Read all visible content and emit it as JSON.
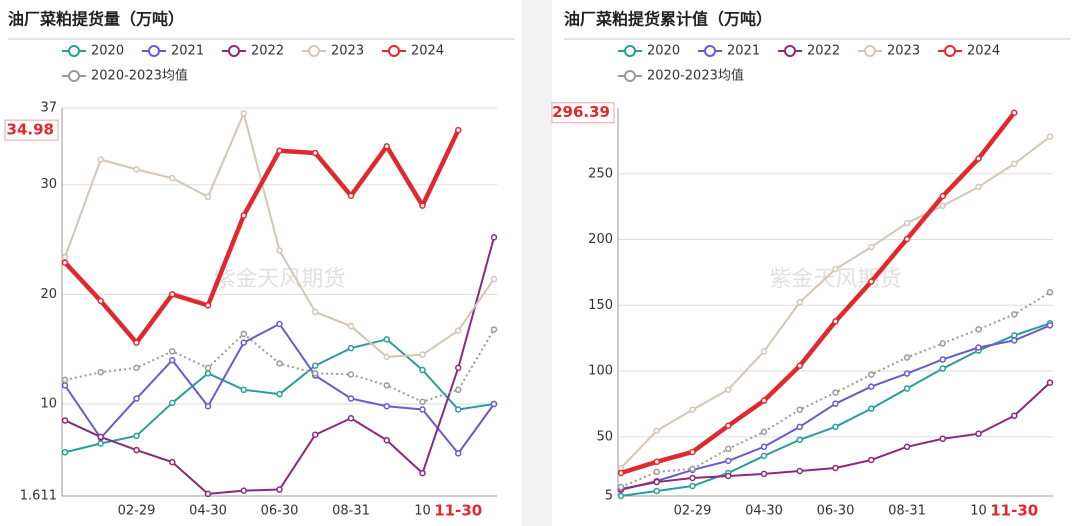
{
  "chart_data": [
    {
      "type": "line",
      "title": "油厂菜粕提货量（万吨）",
      "watermark": "紫金天风期货",
      "categories": [
        null,
        null,
        "02-29",
        null,
        "04-30",
        null,
        "06-30",
        null,
        "08-31",
        null,
        "10",
        "11-30",
        null
      ],
      "highlight_category": "11-30",
      "current_value": 34.98,
      "ylim": [
        1.611,
        37
      ],
      "yticks": [
        1.611,
        10,
        20,
        30,
        37
      ],
      "grid": true,
      "series": [
        {
          "name": "2020",
          "color": "#2a9d9a",
          "values": [
            5.6,
            6.4,
            7.1,
            10.1,
            12.8,
            11.3,
            10.9,
            13.5,
            15.1,
            15.9,
            13.1,
            9.5,
            10.0
          ]
        },
        {
          "name": "2021",
          "color": "#6a5acd",
          "values": [
            11.7,
            6.9,
            10.5,
            14.0,
            9.8,
            15.6,
            17.3,
            12.6,
            10.5,
            9.8,
            9.5,
            5.5,
            10.0
          ]
        },
        {
          "name": "2022",
          "color": "#8b2a7a",
          "values": [
            8.5,
            7.0,
            5.8,
            4.7,
            1.8,
            2.1,
            2.2,
            7.2,
            8.7,
            6.7,
            3.7,
            13.3,
            25.2
          ]
        },
        {
          "name": "2023",
          "color": "#d4c6b4",
          "values": [
            23.4,
            32.3,
            31.4,
            30.6,
            28.9,
            36.5,
            24.0,
            18.4,
            17.1,
            14.3,
            14.5,
            16.7,
            21.4
          ]
        },
        {
          "name": "2024",
          "color": "#e0282e",
          "values": [
            22.9,
            19.4,
            15.6,
            20.0,
            19.0,
            27.2,
            33.1,
            32.9,
            29.0,
            33.5,
            28.1,
            34.98,
            null
          ]
        },
        {
          "name": "2020-2023均值",
          "color": "#999999",
          "dashed": true,
          "values": [
            12.2,
            12.9,
            13.3,
            14.8,
            13.3,
            16.4,
            13.7,
            12.8,
            12.7,
            11.7,
            10.2,
            11.3,
            16.8
          ]
        }
      ]
    },
    {
      "type": "line",
      "title": "油厂菜粕提货累计值（万吨）",
      "watermark": "紫金天风期货",
      "categories": [
        null,
        null,
        "02-29",
        null,
        "04-30",
        null,
        "06-30",
        null,
        "08-31",
        null,
        "10",
        "11-30",
        null
      ],
      "highlight_category": "11-30",
      "current_value": 296.39,
      "ylim": [
        5,
        300
      ],
      "yticks": [
        5,
        50,
        100,
        150,
        200,
        250
      ],
      "grid": true,
      "series": [
        {
          "name": "2020",
          "color": "#2a9d9a",
          "values": [
            5,
            8.8,
            12.6,
            22.5,
            35.5,
            47.7,
            57.6,
            71.4,
            86.7,
            101.9,
            115.6,
            127.1,
            136.3
          ]
        },
        {
          "name": "2021",
          "color": "#6a5acd",
          "values": [
            9.6,
            16.4,
            24.8,
            31.7,
            42.4,
            57.6,
            75.2,
            88.2,
            98.1,
            108.8,
            117.9,
            123.3,
            134.7
          ]
        },
        {
          "name": "2022",
          "color": "#8b2a7a",
          "values": [
            10.3,
            15.6,
            18.7,
            20.2,
            21.8,
            24.0,
            26.3,
            32.4,
            42.4,
            48.5,
            52.3,
            66,
            91.2
          ]
        },
        {
          "name": "2023",
          "color": "#d4c6b4",
          "values": [
            26.3,
            54.6,
            70.6,
            85.9,
            114.9,
            152.3,
            177.5,
            194.3,
            212.6,
            225.6,
            240,
            257.6,
            278.2
          ]
        },
        {
          "name": "2024",
          "color": "#e0282e",
          "values": [
            22.5,
            31,
            38.5,
            58.4,
            77.5,
            104,
            137.8,
            168,
            200.4,
            233,
            261.5,
            296.39,
            null
          ]
        },
        {
          "name": "2020-2023均值",
          "color": "#999999",
          "dashed": true,
          "values": [
            11.8,
            23.3,
            25.6,
            40.8,
            53.8,
            70.6,
            83.6,
            97.3,
            110.3,
            121,
            131.7,
            143.1,
            159.9
          ]
        }
      ]
    }
  ]
}
